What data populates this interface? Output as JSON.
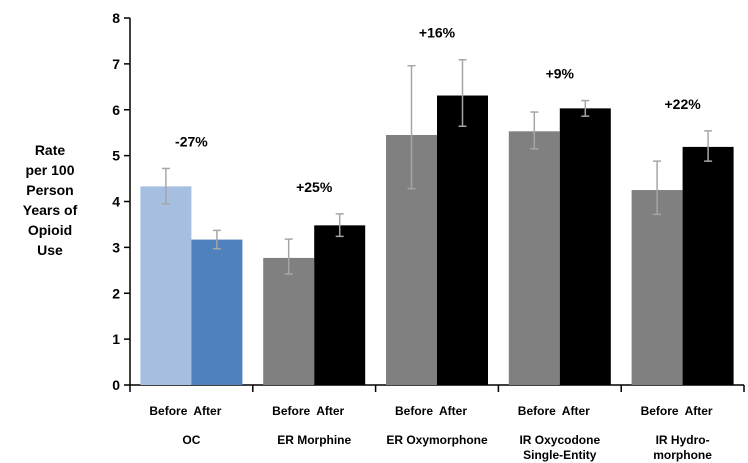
{
  "chart_data": {
    "type": "bar",
    "title": "",
    "ylabel": [
      "Rate",
      "per 100",
      "Person",
      "Years of",
      "Opioid",
      "Use"
    ],
    "xlabel": "",
    "ylim": [
      0,
      8
    ],
    "yticks": [
      0,
      1,
      2,
      3,
      4,
      5,
      6,
      7,
      8
    ],
    "categories": [
      [
        "OC"
      ],
      [
        "ER Morphine"
      ],
      [
        "ER Oxymorphone"
      ],
      [
        "IR Oxycodone",
        "Single-Entity"
      ],
      [
        "IR Hydro-",
        "morphone"
      ]
    ],
    "phase_labels": [
      "Before",
      "After"
    ],
    "series": [
      {
        "values": [
          4.33,
          2.77,
          5.45,
          5.53,
          4.25
        ],
        "err_low": [
          3.95,
          2.42,
          4.28,
          5.15,
          3.72
        ],
        "err_high": [
          4.72,
          3.18,
          6.96,
          5.95,
          4.88
        ],
        "colors": [
          "#a6bfe0",
          "#808080",
          "#808080",
          "#808080",
          "#808080"
        ]
      },
      {
        "values": [
          3.17,
          3.48,
          6.31,
          6.03,
          5.19
        ],
        "err_low": [
          2.97,
          3.24,
          5.64,
          5.86,
          4.88
        ],
        "err_high": [
          3.37,
          3.73,
          7.09,
          6.2,
          5.54
        ],
        "colors": [
          "#4f81bd",
          "#000000",
          "#000000",
          "#000000",
          "#000000"
        ]
      }
    ],
    "percent_change": [
      "-27%",
      "+25%",
      "+16%",
      "+9%",
      "+22%"
    ],
    "errorbar_color": "#a6a6a6",
    "grid": false,
    "legend": "none"
  }
}
